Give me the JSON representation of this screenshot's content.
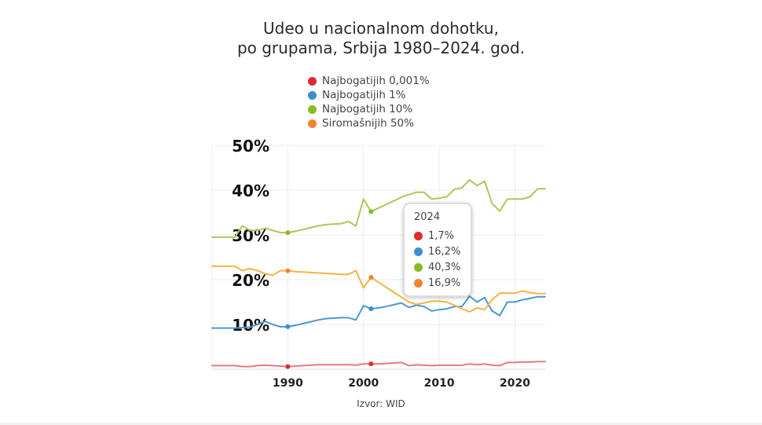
{
  "chart_data": {
    "type": "line",
    "title": "Udeo u nacionalnom dohotku,",
    "subtitle": "po grupama, Srbija 1980–2024. god.",
    "xlabel": "",
    "ylabel": "",
    "xlim": [
      1980,
      2024
    ],
    "ylim": [
      0,
      50
    ],
    "x_ticks": [
      "1990",
      "2000",
      "2010",
      "2020"
    ],
    "y_ticks": [
      "10%",
      "20%",
      "30%",
      "40%",
      "50%"
    ],
    "grid": true,
    "legend_position": "top-center",
    "x": [
      1980,
      1981,
      1982,
      1983,
      1984,
      1985,
      1986,
      1987,
      1988,
      1989,
      1990,
      1991,
      1992,
      1993,
      1994,
      1995,
      1996,
      1997,
      1998,
      1999,
      2000,
      2001,
      2002,
      2003,
      2004,
      2005,
      2006,
      2007,
      2008,
      2009,
      2010,
      2011,
      2012,
      2013,
      2014,
      2015,
      2016,
      2017,
      2018,
      2019,
      2020,
      2021,
      2022,
      2023,
      2024
    ],
    "series": [
      {
        "name": "Najbogatijih 0,001%",
        "color": "#e87a82",
        "dot": "#e02a2a",
        "values": [
          0.8,
          0.8,
          0.8,
          0.8,
          0.6,
          0.6,
          0.8,
          0.9,
          0.8,
          0.7,
          0.6,
          0.7,
          0.8,
          0.9,
          1.0,
          1.0,
          1.0,
          1.0,
          1.0,
          0.9,
          1.2,
          1.2,
          1.2,
          1.3,
          1.4,
          1.5,
          0.8,
          1.0,
          0.9,
          0.8,
          0.9,
          0.9,
          0.9,
          0.9,
          1.2,
          1.0,
          1.2,
          0.9,
          0.8,
          1.5,
          1.5,
          1.6,
          1.6,
          1.7,
          1.7
        ]
      },
      {
        "name": "Najbogatijih 1%",
        "color": "#4a98d2",
        "dot": "#3a8fd0",
        "values": [
          9.2,
          9.2,
          9.2,
          9.2,
          9.3,
          9.4,
          10.0,
          10.7,
          10.0,
          9.5,
          9.5,
          9.8,
          10.2,
          10.6,
          11.0,
          11.3,
          11.4,
          11.5,
          11.5,
          11.0,
          14.2,
          13.5,
          13.7,
          14.0,
          14.4,
          14.8,
          13.8,
          14.3,
          14.0,
          13.0,
          13.3,
          13.5,
          14.0,
          14.0,
          16.3,
          15.0,
          16.0,
          13.0,
          12.0,
          15.0,
          15.0,
          15.5,
          15.8,
          16.2,
          16.2
        ]
      },
      {
        "name": "Najbogatijih 10%",
        "color": "#a9c95a",
        "dot": "#86bc25",
        "values": [
          29.5,
          29.5,
          29.5,
          29.5,
          32.0,
          31.0,
          31.0,
          31.5,
          31.0,
          30.5,
          30.5,
          30.8,
          31.2,
          31.6,
          32.0,
          32.3,
          32.4,
          32.5,
          33.0,
          32.0,
          38.0,
          35.2,
          36.0,
          36.8,
          37.6,
          38.4,
          39.0,
          39.5,
          39.5,
          38.0,
          38.2,
          38.5,
          40.2,
          40.5,
          42.3,
          41.0,
          42.0,
          37.0,
          35.3,
          38.0,
          38.0,
          38.0,
          38.5,
          40.3,
          40.3
        ]
      },
      {
        "name": "Siromašnijih 50%",
        "color": "#f2b53e",
        "dot": "#f58230",
        "values": [
          23.0,
          23.0,
          23.0,
          23.0,
          22.0,
          22.5,
          22.0,
          21.3,
          21.0,
          22.0,
          22.0,
          21.8,
          21.7,
          21.6,
          21.5,
          21.4,
          21.3,
          21.2,
          21.2,
          22.0,
          18.2,
          20.5,
          19.4,
          18.3,
          17.2,
          16.1,
          15.0,
          14.5,
          14.8,
          15.2,
          15.2,
          15.0,
          14.3,
          13.5,
          12.8,
          13.7,
          13.3,
          15.5,
          17.0,
          17.0,
          17.0,
          17.5,
          17.1,
          16.9,
          16.9
        ]
      }
    ],
    "tooltip": {
      "year": "2024",
      "values": [
        "1,7%",
        "16,2%",
        "40,3%",
        "16,9%"
      ]
    },
    "source": "Izvor: WID"
  }
}
